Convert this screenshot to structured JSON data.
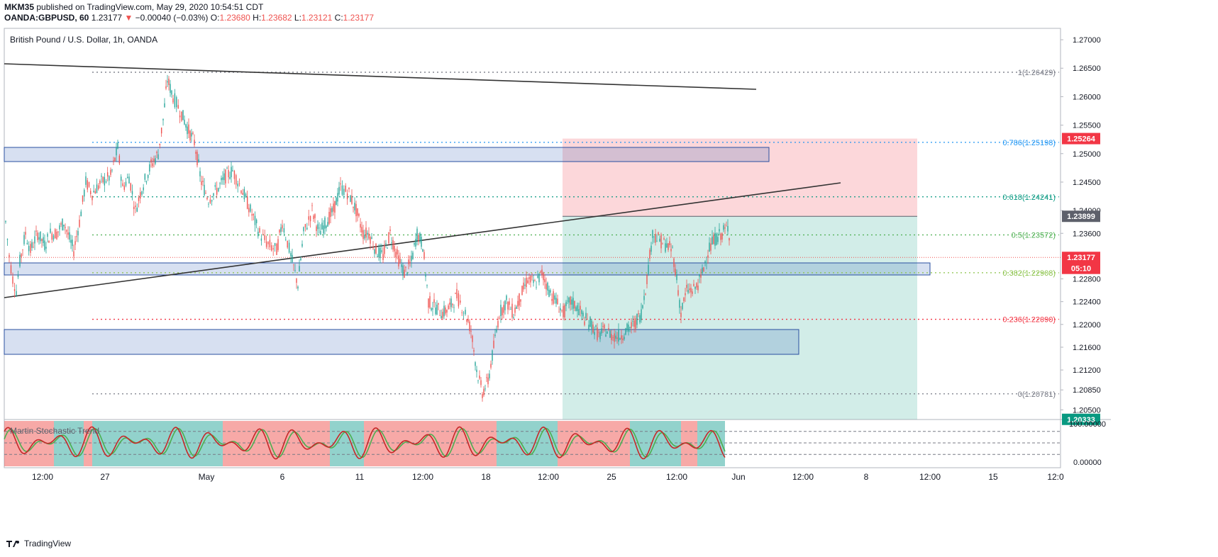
{
  "header": {
    "user": "MKM35",
    "published": "published on TradingView.com, May 29, 2020 10:54:51 CDT",
    "symbol": "OANDA:GBPUSD, 60",
    "last": "1.23177",
    "change_arrow": "▼",
    "change": "−0.00040 (−0.03%)",
    "o_label": "O:",
    "o": "1.23680",
    "h_label": "H:",
    "h": "1.23682",
    "l_label": "L:",
    "l": "1.23121",
    "c_label": "C:",
    "c": "1.23177"
  },
  "footer": {
    "brand": "TradingView"
  },
  "chart_data": {
    "type": "candlestick",
    "title": "British Pound / U.S. Dollar, 1h, OANDA",
    "ylim": [
      1.2033,
      1.272
    ],
    "y_ticks": [
      "1.27000",
      "1.26500",
      "1.26000",
      "1.25500",
      "1.25000",
      "1.24500",
      "1.24000",
      "1.23600",
      "1.22800",
      "1.22400",
      "1.22000",
      "1.21600",
      "1.21200",
      "1.20850",
      "1.20500"
    ],
    "x_ticks": [
      "12:00",
      "27",
      "May",
      "6",
      "11",
      "12:00",
      "18",
      "12:00",
      "25",
      "12:00",
      "Jun",
      "12:00",
      "8",
      "12:00",
      "15",
      "12:0"
    ],
    "fib_levels": [
      {
        "label": "1(1.26429)",
        "value": 1.26429,
        "color": "#787b86"
      },
      {
        "label": "0.786(1.25198)",
        "value": 1.25198,
        "color": "#2196f3"
      },
      {
        "label": "0.618(1.24241)",
        "value": 1.24241,
        "color": "#089981"
      },
      {
        "label": "0.5(1.23572)",
        "value": 1.23572,
        "color": "#4caf50"
      },
      {
        "label": "0.382(1.22908)",
        "value": 1.22908,
        "color": "#8bc34a"
      },
      {
        "label": "0.236(1.22090)",
        "value": 1.2209,
        "color": "#f23645"
      },
      {
        "label": "0(1.20781)",
        "value": 1.20781,
        "color": "#787b86"
      }
    ],
    "price_tags": [
      {
        "label": "1.25264",
        "value": 1.25264,
        "bg": "#f23645"
      },
      {
        "label": "1.23899",
        "value": 1.23899,
        "bg": "#5d606b"
      },
      {
        "label": "1.23177",
        "value": 1.23177,
        "bg": "#f23645"
      },
      {
        "label": "05:10",
        "value": 1.22985,
        "bg": "#f23645"
      },
      {
        "label": "1.20333",
        "value": 1.20333,
        "bg": "#089981"
      }
    ],
    "current_price": 1.23177,
    "position": {
      "entry": 1.23899,
      "stop": 1.25264,
      "target": 1.20333
    },
    "series_path": [
      [
        0,
        1.238
      ],
      [
        5,
        1.232
      ],
      [
        10,
        1.228
      ],
      [
        15,
        1.226
      ],
      [
        20,
        1.231
      ],
      [
        28,
        1.236
      ],
      [
        35,
        1.233
      ],
      [
        45,
        1.236
      ],
      [
        55,
        1.234
      ],
      [
        63,
        1.236
      ],
      [
        72,
        1.236
      ],
      [
        82,
        1.238
      ],
      [
        90,
        1.235
      ],
      [
        96,
        1.233
      ],
      [
        104,
        1.238
      ],
      [
        113,
        1.245
      ],
      [
        122,
        1.243
      ],
      [
        135,
        1.245
      ],
      [
        148,
        1.246
      ],
      [
        158,
        1.251
      ],
      [
        165,
        1.244
      ],
      [
        174,
        1.246
      ],
      [
        183,
        1.24
      ],
      [
        192,
        1.244
      ],
      [
        205,
        1.248
      ],
      [
        215,
        1.25
      ],
      [
        222,
        1.256
      ],
      [
        228,
        1.263
      ],
      [
        236,
        1.26
      ],
      [
        248,
        1.257
      ],
      [
        258,
        1.254
      ],
      [
        266,
        1.252
      ],
      [
        276,
        1.245
      ],
      [
        286,
        1.242
      ],
      [
        300,
        1.244
      ],
      [
        310,
        1.246
      ],
      [
        320,
        1.247
      ],
      [
        332,
        1.244
      ],
      [
        345,
        1.24
      ],
      [
        358,
        1.236
      ],
      [
        370,
        1.234
      ],
      [
        382,
        1.233
      ],
      [
        390,
        1.238
      ],
      [
        402,
        1.232
      ],
      [
        412,
        1.227
      ],
      [
        420,
        1.236
      ],
      [
        432,
        1.24
      ],
      [
        442,
        1.236
      ],
      [
        452,
        1.238
      ],
      [
        462,
        1.24
      ],
      [
        472,
        1.244
      ],
      [
        484,
        1.243
      ],
      [
        494,
        1.24
      ],
      [
        504,
        1.236
      ],
      [
        512,
        1.236
      ],
      [
        522,
        1.233
      ],
      [
        532,
        1.232
      ],
      [
        542,
        1.236
      ],
      [
        552,
        1.232
      ],
      [
        562,
        1.229
      ],
      [
        572,
        1.231
      ],
      [
        580,
        1.236
      ],
      [
        588,
        1.234
      ],
      [
        596,
        1.224
      ],
      [
        606,
        1.223
      ],
      [
        616,
        1.222
      ],
      [
        626,
        1.223
      ],
      [
        636,
        1.225
      ],
      [
        648,
        1.222
      ],
      [
        656,
        1.219
      ],
      [
        664,
        1.212
      ],
      [
        672,
        1.208
      ],
      [
        680,
        1.21
      ],
      [
        688,
        1.216
      ],
      [
        696,
        1.222
      ],
      [
        706,
        1.224
      ],
      [
        716,
        1.222
      ],
      [
        726,
        1.225
      ],
      [
        736,
        1.228
      ],
      [
        746,
        1.227
      ],
      [
        756,
        1.229
      ],
      [
        766,
        1.226
      ],
      [
        776,
        1.224
      ],
      [
        786,
        1.222
      ],
      [
        796,
        1.224
      ],
      [
        806,
        1.223
      ],
      [
        816,
        1.221
      ],
      [
        826,
        1.22
      ],
      [
        836,
        1.218
      ],
      [
        846,
        1.219
      ],
      [
        856,
        1.218
      ],
      [
        866,
        1.218
      ],
      [
        876,
        1.219
      ],
      [
        886,
        1.22
      ],
      [
        896,
        1.222
      ],
      [
        904,
        1.228
      ],
      [
        912,
        1.236
      ],
      [
        920,
        1.235
      ],
      [
        930,
        1.234
      ],
      [
        940,
        1.233
      ],
      [
        946,
        1.228
      ],
      [
        952,
        1.222
      ],
      [
        960,
        1.226
      ],
      [
        970,
        1.226
      ],
      [
        980,
        1.228
      ],
      [
        990,
        1.233
      ],
      [
        1000,
        1.235
      ],
      [
        1010,
        1.236
      ],
      [
        1018,
        1.237
      ],
      [
        1022,
        1.235
      ]
    ],
    "bands": [
      {
        "value": 0.9,
        "color": "#ef5350"
      },
      {
        "value": 0.45,
        "color": "#ef5350"
      },
      {
        "value": 0.2,
        "color": "#ef5350"
      }
    ],
    "stochastic": {
      "title": "Martin Stochastic Trend",
      "ylim": [
        0,
        100
      ],
      "y_ticks": [
        "100.00000",
        "0.00000"
      ],
      "levels": [
        80,
        50,
        20
      ]
    }
  }
}
